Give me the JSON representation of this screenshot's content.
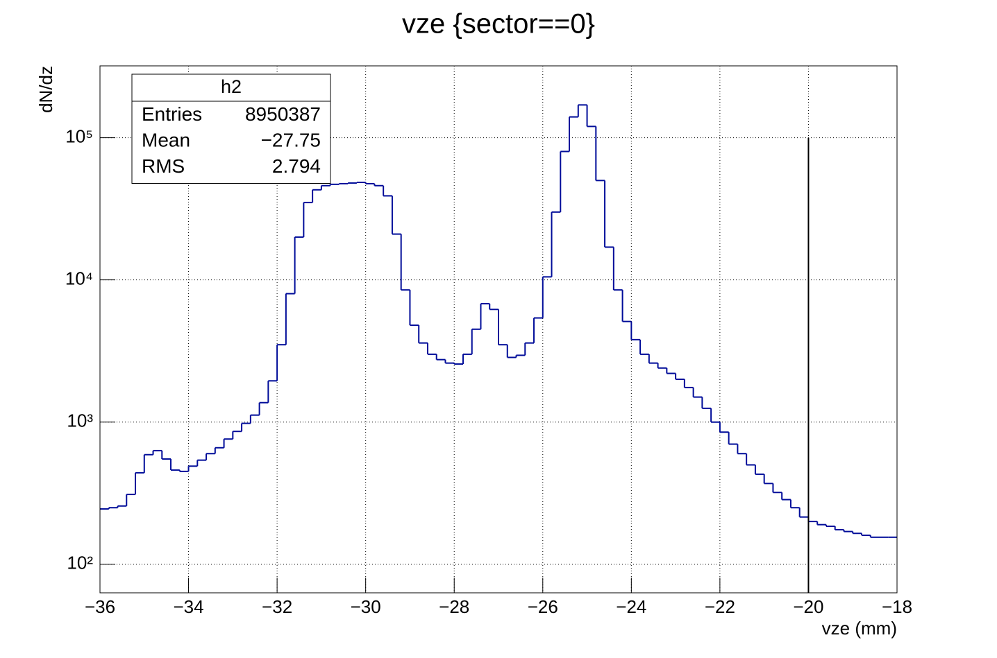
{
  "chart_data": {
    "type": "histogram",
    "title": "vze {sector==0}",
    "x_label": "vze (mm)",
    "y_label": "dN/dz",
    "bins": [
      -36,
      -35.8,
      -35.6,
      -35.4,
      -35.2,
      -35,
      -34.8,
      -34.6,
      -34.4,
      -34.2,
      -34,
      -33.8,
      -33.6,
      -33.4,
      -33.2,
      -33,
      -32.8,
      -32.6,
      -32.4,
      -32.2,
      -32,
      -31.8,
      -31.6,
      -31.4,
      -31.2,
      -31,
      -30.8,
      -30.6,
      -30.4,
      -30.2,
      -30,
      -29.8,
      -29.6,
      -29.4,
      -29.2,
      -29,
      -28.8,
      -28.6,
      -28.4,
      -28.2,
      -28,
      -27.8,
      -27.6,
      -27.4,
      -27.2,
      -27,
      -26.8,
      -26.6,
      -26.4,
      -26.2,
      -26,
      -25.8,
      -25.6,
      -25.4,
      -25.2,
      -25,
      -24.8,
      -24.6,
      -24.4,
      -24.2,
      -24,
      -23.8,
      -23.6,
      -23.4,
      -23.2,
      -23,
      -22.8,
      -22.6,
      -22.4,
      -22.2,
      -22,
      -21.8,
      -21.6,
      -21.4,
      -21.2,
      -21,
      -20.8,
      -20.6,
      -20.4,
      -20.2,
      -20,
      -19.8,
      -19.6,
      -19.4,
      -19.2,
      -19,
      -18.8,
      -18.6,
      -18.4,
      -18.2,
      -18
    ],
    "values": [
      245,
      250,
      257,
      310,
      440,
      590,
      630,
      550,
      460,
      450,
      490,
      540,
      600,
      660,
      760,
      860,
      980,
      1120,
      1370,
      1950,
      3500,
      8000,
      20000,
      35000,
      43000,
      46000,
      47000,
      47500,
      48000,
      48500,
      47500,
      46000,
      39000,
      21000,
      8500,
      4800,
      3600,
      3000,
      2750,
      2600,
      2560,
      3000,
      4500,
      6800,
      6200,
      3500,
      2850,
      2950,
      3600,
      5400,
      10500,
      30000,
      80000,
      140000,
      170000,
      120000,
      50000,
      17000,
      8500,
      5100,
      3800,
      3000,
      2600,
      2400,
      2200,
      2000,
      1750,
      1500,
      1250,
      1000,
      850,
      700,
      600,
      500,
      430,
      370,
      320,
      285,
      250,
      215,
      200,
      190,
      185,
      175,
      170,
      165,
      160,
      155,
      155,
      155
    ],
    "color": "#000c99",
    "xlim": [
      -36,
      -18
    ],
    "xticks": [
      {
        "value": -36,
        "label": "−36"
      },
      {
        "value": -34,
        "label": "−34"
      },
      {
        "value": -32,
        "label": "−32"
      },
      {
        "value": -30,
        "label": "−30"
      },
      {
        "value": -28,
        "label": "−28"
      },
      {
        "value": -26,
        "label": "−26"
      },
      {
        "value": -24,
        "label": "−24"
      },
      {
        "value": -22,
        "label": "−22"
      },
      {
        "value": -20,
        "label": "−20"
      },
      {
        "value": -18,
        "label": "−18"
      }
    ],
    "ylim": [
      63,
      320000
    ],
    "y_log": true,
    "yticks": [
      {
        "value": 100,
        "label": "10²"
      },
      {
        "value": 1000,
        "label": "10³"
      },
      {
        "value": 10000,
        "label": "10⁴"
      },
      {
        "value": 100000,
        "label": "10⁵"
      }
    ],
    "grid": true,
    "vline": {
      "x": -20,
      "y_top": 100000,
      "color": "#000000"
    },
    "stats": {
      "title": "h2",
      "rows": [
        [
          "Entries",
          "8950387"
        ],
        [
          "Mean",
          "−27.75"
        ],
        [
          "RMS",
          "2.794"
        ]
      ]
    }
  }
}
